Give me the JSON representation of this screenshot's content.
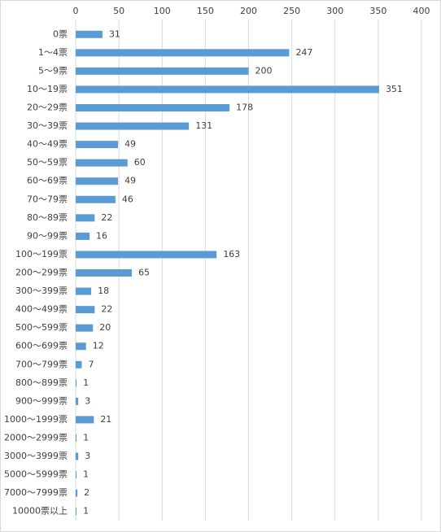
{
  "chart_data": {
    "type": "bar",
    "orientation": "horizontal",
    "categories": [
      "0票",
      "1～4票",
      "5～9票",
      "10～19票",
      "20～29票",
      "30～39票",
      "40～49票",
      "50～59票",
      "60～69票",
      "70～79票",
      "80～89票",
      "90～99票",
      "100～199票",
      "200～299票",
      "300～399票",
      "400～499票",
      "500～599票",
      "600～699票",
      "700～799票",
      "800～899票",
      "900～999票",
      "1000～1999票",
      "2000～2999票",
      "3000～3999票",
      "5000～5999票",
      "7000～7999票",
      "10000票以上"
    ],
    "values": [
      31,
      247,
      200,
      351,
      178,
      131,
      49,
      60,
      49,
      46,
      22,
      16,
      163,
      65,
      18,
      22,
      20,
      12,
      7,
      1,
      3,
      21,
      1,
      3,
      1,
      2,
      1
    ],
    "color": "#5b9bd5",
    "xlim": [
      0,
      400
    ],
    "xticks": [
      0,
      50,
      100,
      150,
      200,
      250,
      300,
      350,
      400
    ],
    "grid": true
  }
}
